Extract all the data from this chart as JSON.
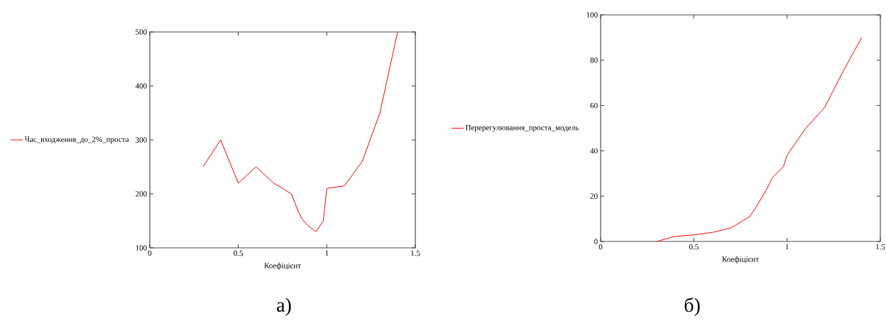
{
  "chart_data": [
    {
      "type": "line",
      "xlabel": "Коефіцієнт",
      "annotations": [
        "а)"
      ],
      "legend": "left",
      "xlim": [
        0,
        1.5
      ],
      "ylim": [
        100,
        500
      ],
      "xticks": [
        0,
        0.5,
        1,
        1.5
      ],
      "yticks": [
        100,
        200,
        300,
        400,
        500
      ],
      "x": [
        0.3,
        0.4,
        0.5,
        0.6,
        0.7,
        0.8,
        0.84,
        0.86,
        0.89,
        0.94,
        0.98,
        1.0,
        1.1,
        1.2,
        1.3,
        1.4
      ],
      "series": [
        {
          "name": "Час_входження_до_2%_проста",
          "color": "#ff0000",
          "values": [
            250,
            300,
            220,
            250,
            220,
            200,
            166,
            154,
            142,
            130,
            150,
            210,
            215,
            260,
            350,
            500
          ]
        }
      ]
    },
    {
      "type": "line",
      "xlabel": "Коефіцієнт",
      "annotations": [
        "б)"
      ],
      "legend": "left",
      "xlim": [
        0,
        1.5
      ],
      "ylim": [
        0,
        100
      ],
      "xticks": [
        0,
        0.5,
        1,
        1.5
      ],
      "yticks": [
        0,
        20,
        40,
        60,
        80,
        100
      ],
      "x": [
        0.3,
        0.4,
        0.5,
        0.6,
        0.7,
        0.8,
        0.84,
        0.89,
        0.92,
        0.98,
        1.0,
        1.1,
        1.2,
        1.3,
        1.4
      ],
      "series": [
        {
          "name": "Перерегулювання_проста_модель",
          "color": "#ff0000",
          "values": [
            0,
            2.2,
            2.9,
            4,
            6,
            11,
            16,
            23,
            28,
            33,
            38,
            50,
            59,
            75,
            90
          ]
        }
      ]
    }
  ]
}
